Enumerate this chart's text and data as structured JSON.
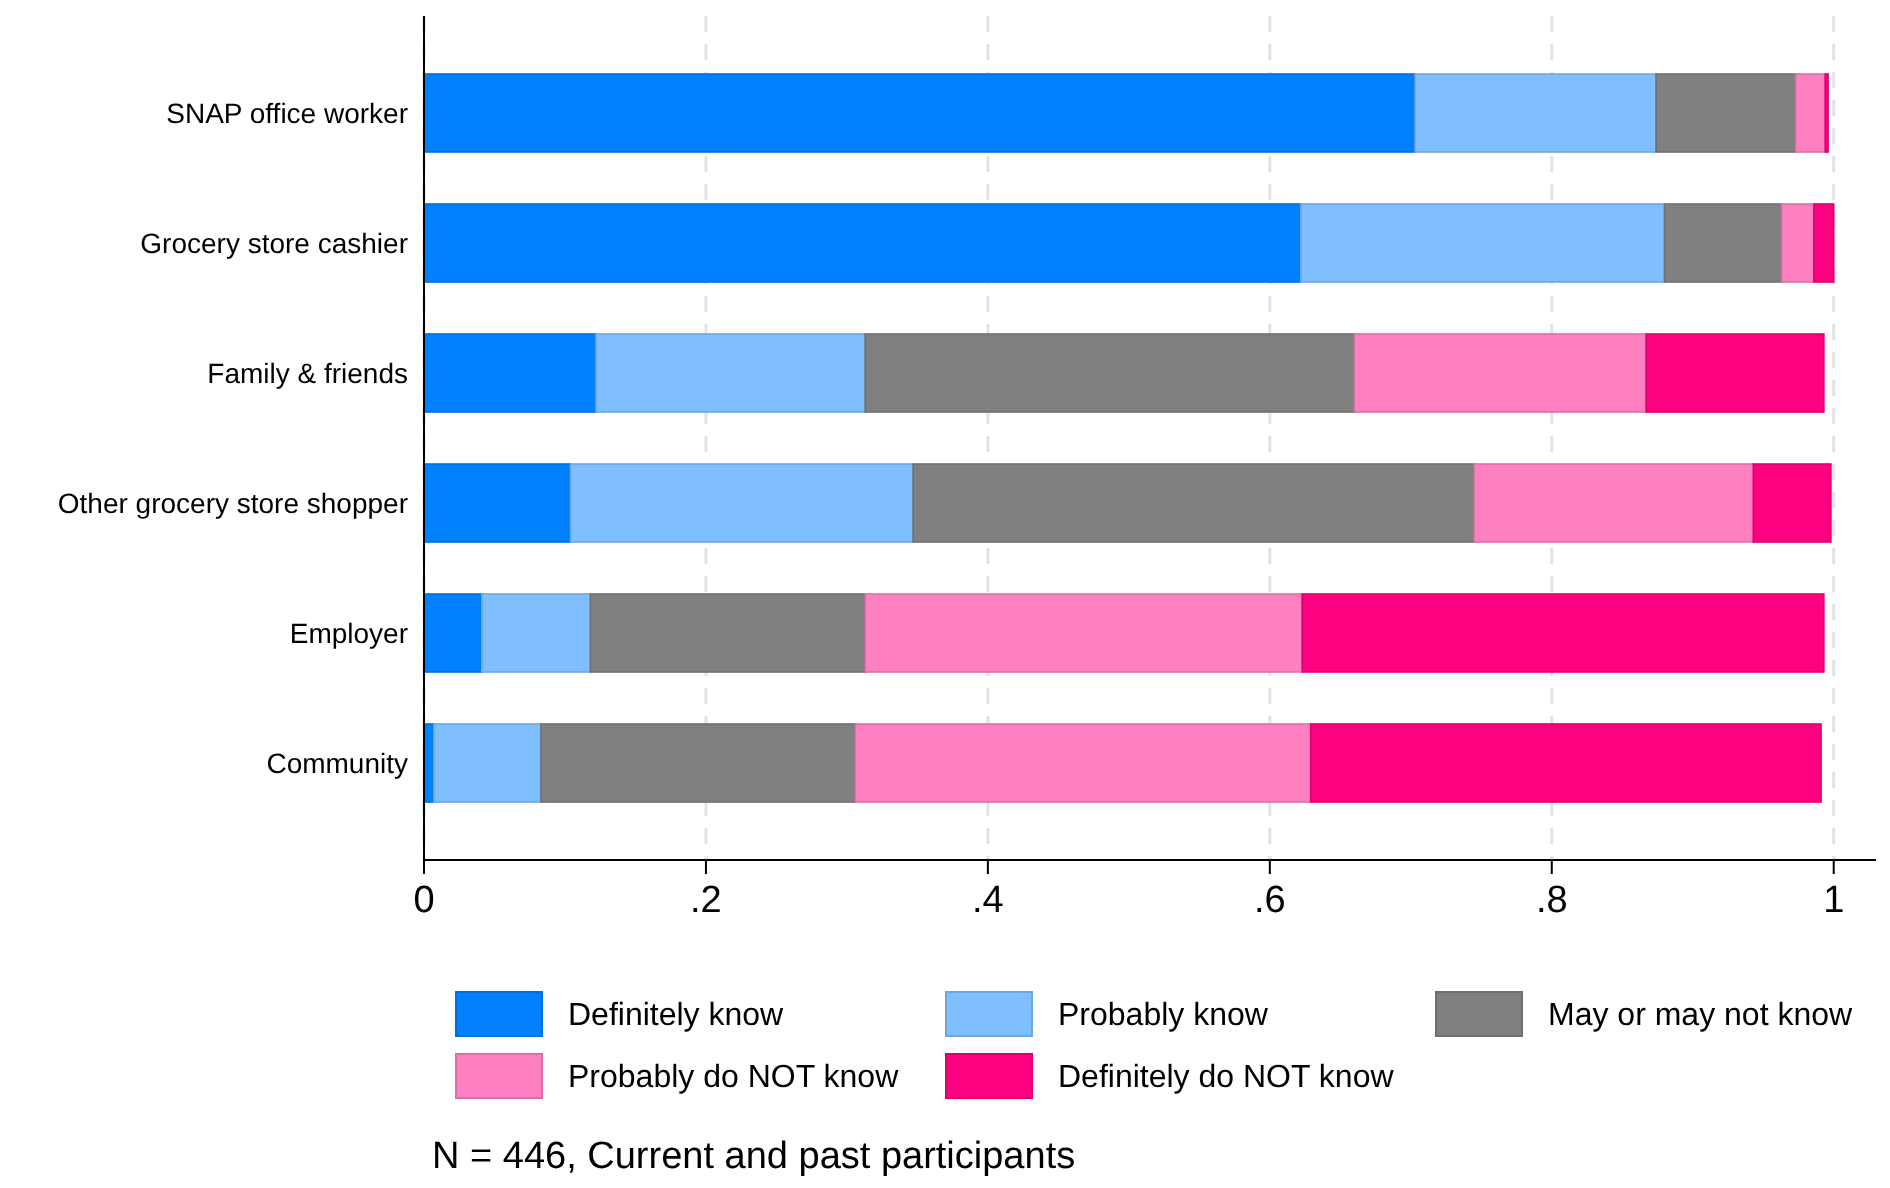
{
  "chart_data": {
    "type": "bar",
    "orientation": "horizontal",
    "stacked": true,
    "categories": [
      "SNAP office worker",
      "Grocery store cashier",
      "Family & friends",
      "Other grocery store shopper",
      "Employer",
      "Community"
    ],
    "series": [
      {
        "name": "Definitely know",
        "color": "#0080ff",
        "values": [
          0.703,
          0.622,
          0.122,
          0.104,
          0.041,
          0.007
        ]
      },
      {
        "name": "Probably know",
        "color": "#80bfff",
        "values": [
          0.171,
          0.258,
          0.191,
          0.243,
          0.077,
          0.076
        ]
      },
      {
        "name": "May or may not know",
        "color": "#808080",
        "values": [
          0.099,
          0.083,
          0.347,
          0.398,
          0.195,
          0.223
        ]
      },
      {
        "name": "Probably do NOT know",
        "color": "#ff80c0",
        "values": [
          0.021,
          0.023,
          0.207,
          0.198,
          0.31,
          0.323
        ]
      },
      {
        "name": "Definitely do NOT know",
        "color": "#ff0080",
        "values": [
          0.002,
          0.014,
          0.126,
          0.055,
          0.37,
          0.362
        ]
      }
    ],
    "xlim": [
      0,
      1.03
    ],
    "xticks": [
      0,
      {
        "value": 0.2,
        "label": ".2"
      },
      {
        "value": 0.4,
        "label": ".4"
      },
      {
        "value": 0.6,
        "label": ".6"
      },
      {
        "value": 0.8,
        "label": ".8"
      },
      1
    ],
    "grid": "x",
    "legend": "bottom",
    "annotations": [
      "N = 446, Current and past participants"
    ]
  }
}
